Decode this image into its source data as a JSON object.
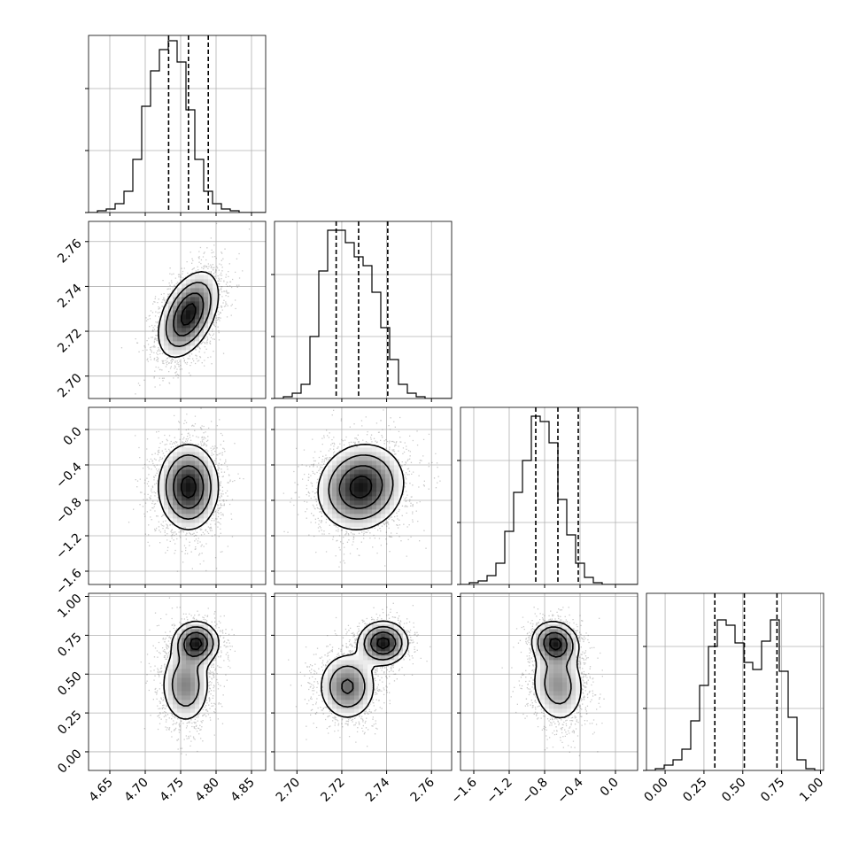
{
  "chart_data": {
    "type": "corner",
    "grid": true,
    "parameters": [
      {
        "name": "",
        "range": [
          4.62,
          4.87
        ],
        "ticks": [
          4.65,
          4.7,
          4.75,
          4.8,
          4.85
        ],
        "tick_labels": [
          "4.65",
          "4.70",
          "4.75",
          "4.80",
          "4.85"
        ],
        "quantiles": [
          4.733,
          4.761,
          4.789
        ],
        "hist": {
          "bin_start": 4.62,
          "bin_width": 0.0125,
          "counts": [
            0,
            1,
            2,
            5,
            12,
            30,
            60,
            80,
            92,
            97,
            85,
            58,
            30,
            12,
            5,
            2,
            1,
            0,
            0,
            0
          ]
        },
        "hist_ymax": 100
      },
      {
        "name": "",
        "range": [
          2.69,
          2.769
        ],
        "ticks": [
          2.7,
          2.72,
          2.74,
          2.76
        ],
        "tick_labels": [
          "2.70",
          "2.72",
          "2.74",
          "2.76"
        ],
        "quantiles": [
          2.7175,
          2.7275,
          2.7405
        ],
        "hist": {
          "bin_start": 2.69,
          "bin_width": 0.00395,
          "counts": [
            0,
            1,
            3,
            8,
            35,
            72,
            95,
            95,
            88,
            80,
            75,
            60,
            40,
            22,
            8,
            3,
            1,
            0,
            0,
            0
          ]
        },
        "hist_ymax": 100
      },
      {
        "name": "",
        "range": [
          -1.75,
          0.25
        ],
        "ticks": [
          -1.6,
          -1.2,
          -0.8,
          -0.4,
          0.0
        ],
        "tick_labels": [
          "−1.6",
          "−1.2",
          "−0.8",
          "−0.4",
          "0.0"
        ],
        "quantiles": [
          -0.9,
          -0.65,
          -0.42
        ],
        "hist": {
          "bin_start": -1.75,
          "bin_width": 0.1,
          "counts": [
            0,
            1,
            2,
            5,
            12,
            30,
            52,
            70,
            95,
            92,
            80,
            48,
            28,
            12,
            4,
            1,
            0,
            0,
            0,
            0
          ]
        },
        "hist_ymax": 100
      },
      {
        "name": "",
        "range": [
          -0.12,
          1.02
        ],
        "ticks": [
          0.0,
          0.25,
          0.5,
          0.75,
          1.0
        ],
        "tick_labels": [
          "0.00",
          "0.25",
          "0.50",
          "0.75",
          "1.00"
        ],
        "quantiles": [
          0.32,
          0.51,
          0.72
        ],
        "hist": {
          "bin_start": -0.12,
          "bin_width": 0.057,
          "counts": [
            0,
            1,
            3,
            6,
            12,
            28,
            48,
            70,
            85,
            82,
            72,
            61,
            57,
            73,
            85,
            56,
            30,
            6,
            1,
            0
          ]
        },
        "hist_ymax": 100
      }
    ],
    "pairs": [
      {
        "row": 1,
        "col": 0,
        "rho": 0.45,
        "components": [
          {
            "w": 1.0,
            "mx": 4.761,
            "my": 2.7275,
            "sx": 0.021,
            "sy": 0.0095
          }
        ]
      },
      {
        "row": 2,
        "col": 0,
        "rho": 0.0,
        "components": [
          {
            "w": 1.0,
            "mx": 4.761,
            "my": -0.65,
            "sx": 0.021,
            "sy": 0.24
          }
        ]
      },
      {
        "row": 2,
        "col": 1,
        "rho": 0.1,
        "components": [
          {
            "w": 1.0,
            "mx": 2.7285,
            "my": -0.65,
            "sx": 0.0095,
            "sy": 0.24
          }
        ]
      },
      {
        "row": 3,
        "col": 0,
        "rho": 0.0,
        "components": [
          {
            "w": 0.55,
            "mx": 4.757,
            "my": 0.43,
            "sx": 0.018,
            "sy": 0.13
          },
          {
            "w": 0.45,
            "mx": 4.772,
            "my": 0.7,
            "sx": 0.016,
            "sy": 0.07
          }
        ]
      },
      {
        "row": 3,
        "col": 1,
        "rho": 0.0,
        "components": [
          {
            "w": 0.55,
            "mx": 2.7225,
            "my": 0.42,
            "sx": 0.0065,
            "sy": 0.11
          },
          {
            "w": 0.45,
            "mx": 2.7385,
            "my": 0.7,
            "sx": 0.0055,
            "sy": 0.07
          }
        ]
      },
      {
        "row": 3,
        "col": 2,
        "rho": -0.1,
        "components": [
          {
            "w": 0.55,
            "mx": -0.65,
            "my": 0.43,
            "sx": 0.16,
            "sy": 0.13
          },
          {
            "w": 0.45,
            "mx": -0.68,
            "my": 0.7,
            "sx": 0.13,
            "sy": 0.07
          }
        ]
      }
    ]
  }
}
